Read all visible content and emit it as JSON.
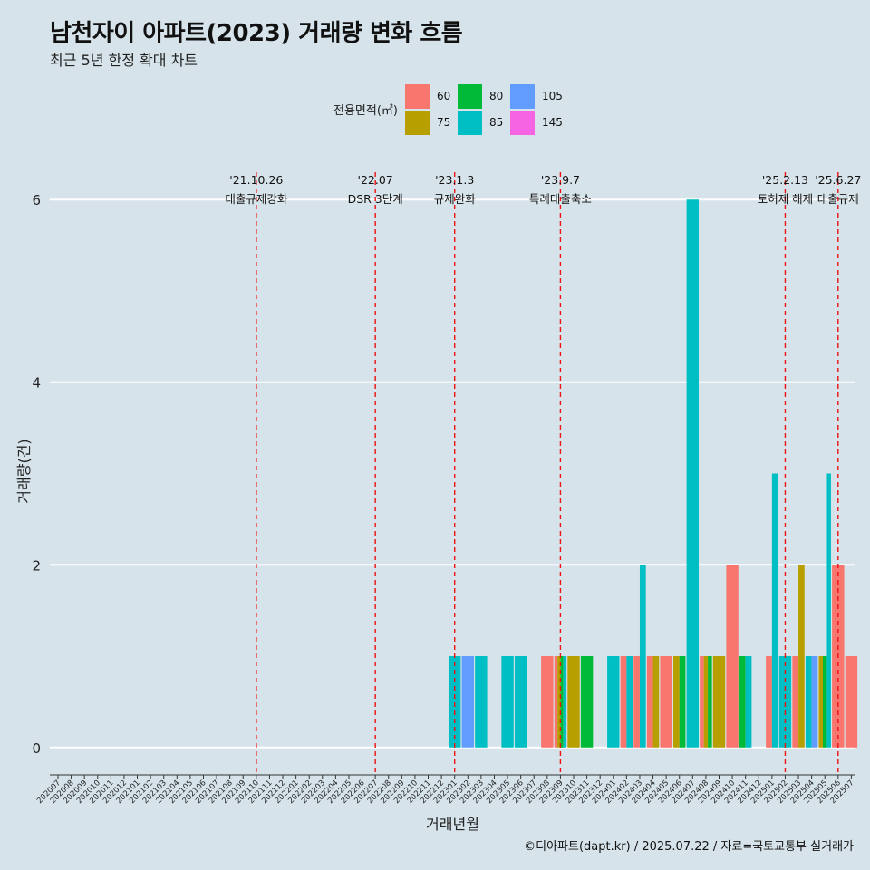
{
  "title": "남천자이 아파트(2023) 거래량 변화 흐름",
  "subtitle": "최근 5년 한정 확대 차트",
  "caption": "©디아파트(dapt.kr) / 2025.07.22 / 자료=국토교통부 실거래가",
  "legend": {
    "title": "전용면적(㎡)",
    "items": [
      {
        "label": "60",
        "color": "#f8766d"
      },
      {
        "label": "75",
        "color": "#b79f00"
      },
      {
        "label": "80",
        "color": "#00ba38"
      },
      {
        "label": "85",
        "color": "#00bfc4"
      },
      {
        "label": "105",
        "color": "#619cff"
      },
      {
        "label": "145",
        "color": "#f564e3"
      }
    ]
  },
  "chart_data": {
    "type": "bar",
    "xlabel": "거래년월",
    "ylabel": "거래량(건)",
    "ylim": [
      -0.3,
      6.3
    ],
    "yticks": [
      0,
      2,
      4,
      6
    ],
    "grid": true,
    "categories": [
      "202007",
      "202008",
      "202009",
      "202010",
      "202011",
      "202012",
      "202101",
      "202102",
      "202103",
      "202104",
      "202105",
      "202106",
      "202107",
      "202108",
      "202109",
      "202110",
      "202111",
      "202112",
      "202201",
      "202202",
      "202203",
      "202204",
      "202205",
      "202206",
      "202207",
      "202208",
      "202209",
      "202210",
      "202211",
      "202212",
      "202301",
      "202302",
      "202303",
      "202304",
      "202305",
      "202306",
      "202307",
      "202308",
      "202309",
      "202310",
      "202311",
      "202312",
      "202401",
      "202402",
      "202403",
      "202404",
      "202405",
      "202406",
      "202407",
      "202408",
      "202409",
      "202410",
      "202411",
      "202412",
      "202501",
      "202502",
      "202503",
      "202504",
      "202505",
      "202506",
      "202507"
    ],
    "series": [
      {
        "name": "60",
        "color": "#f8766d",
        "points": [
          [
            "202308",
            1
          ],
          [
            "202309",
            1
          ],
          [
            "202402",
            1
          ],
          [
            "202403",
            1
          ],
          [
            "202404",
            1
          ],
          [
            "202405",
            1
          ],
          [
            "202408",
            1
          ],
          [
            "202410",
            2
          ],
          [
            "202501",
            1
          ],
          [
            "202503",
            1
          ],
          [
            "202506",
            2
          ],
          [
            "202507",
            1
          ]
        ]
      },
      {
        "name": "75",
        "color": "#b79f00",
        "points": [
          [
            "202309",
            1
          ],
          [
            "202310",
            1
          ],
          [
            "202404",
            1
          ],
          [
            "202406",
            1
          ],
          [
            "202408",
            1
          ],
          [
            "202409",
            1
          ],
          [
            "202503",
            2
          ],
          [
            "202505",
            1
          ]
        ]
      },
      {
        "name": "80",
        "color": "#00ba38",
        "points": [
          [
            "202309",
            1
          ],
          [
            "202311",
            1
          ],
          [
            "202406",
            1
          ],
          [
            "202408",
            1
          ],
          [
            "202411",
            1
          ],
          [
            "202505",
            1
          ]
        ]
      },
      {
        "name": "85",
        "color": "#00bfc4",
        "points": [
          [
            "202301",
            1
          ],
          [
            "202303",
            1
          ],
          [
            "202305",
            1
          ],
          [
            "202306",
            1
          ],
          [
            "202309",
            1
          ],
          [
            "202401",
            1
          ],
          [
            "202402",
            1
          ],
          [
            "202403",
            2
          ],
          [
            "202407",
            6
          ],
          [
            "202411",
            1
          ],
          [
            "202501",
            3
          ],
          [
            "202502",
            1
          ],
          [
            "202504",
            1
          ],
          [
            "202505",
            3
          ]
        ]
      },
      {
        "name": "105",
        "color": "#619cff",
        "points": [
          [
            "202302",
            1
          ],
          [
            "202504",
            1
          ]
        ]
      },
      {
        "name": "145",
        "color": "#f564e3",
        "points": []
      }
    ],
    "annotations": [
      {
        "month": "202110",
        "date": "'21.10.26",
        "label": "대출규제강화"
      },
      {
        "month": "202207",
        "date": "'22.07",
        "label": "DSR 3단계"
      },
      {
        "month": "202301",
        "date": "'23.1.3",
        "label": "규제완화"
      },
      {
        "month": "202309",
        "date": "'23.9.7",
        "label": "특례대출축소"
      },
      {
        "month": "202502",
        "date": "'25.2.13",
        "label": "토허제 해제"
      },
      {
        "month": "202506",
        "date": "'25.6.27",
        "label": "대출규제"
      }
    ]
  }
}
